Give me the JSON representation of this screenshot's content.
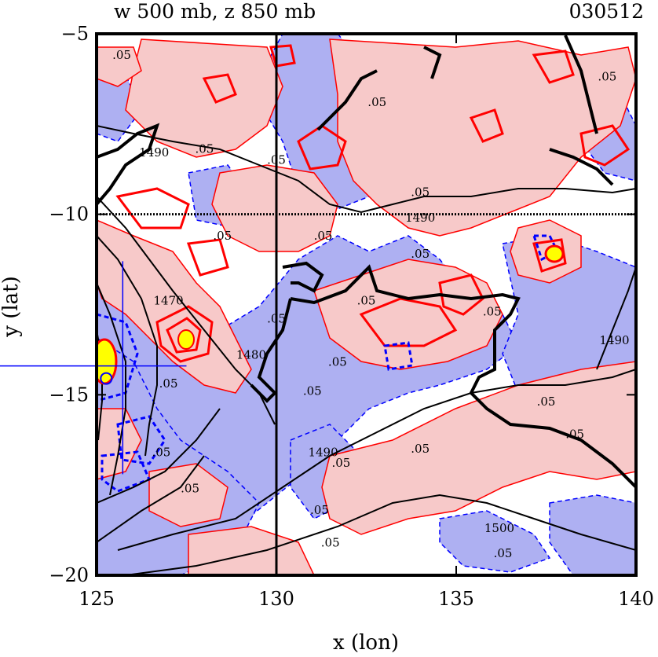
{
  "chart_data": {
    "type": "contour-map",
    "title_left": "w 500 mb, z 850 mb",
    "title_right": "030512",
    "xlabel": "x (lon)",
    "ylabel": "y (lat)",
    "xlim": [
      125,
      140
    ],
    "ylim": [
      -20,
      -5
    ],
    "xticks": [
      {
        "value": 125,
        "label": "125"
      },
      {
        "value": 130,
        "label": "130"
      },
      {
        "value": 135,
        "label": "135"
      },
      {
        "value": 140,
        "label": "140"
      }
    ],
    "yticks": [
      {
        "value": -5,
        "label": "−5"
      },
      {
        "value": -10,
        "label": "−10"
      },
      {
        "value": -15,
        "label": "−15"
      },
      {
        "value": -20,
        "label": "−20"
      }
    ],
    "reference_lines": {
      "x": 130,
      "y": -10
    },
    "marker": {
      "lon": 125.4,
      "lat": -14.2
    },
    "colors": {
      "positive_fill": "#f7c9c9",
      "negative_fill": "#aeb0f2",
      "positive_contour": "#ff0000",
      "negative_contour": "#0000ff",
      "height_contour": "#000000",
      "maximum_fill": "#ffff00",
      "marker": "#0000ff"
    },
    "height_contour_labels": [
      {
        "text": "1490",
        "lon": 126.6,
        "lat": -8.4
      },
      {
        "text": "1470",
        "lon": 127.0,
        "lat": -12.5
      },
      {
        "text": "1480",
        "lon": 129.3,
        "lat": -14.0
      },
      {
        "text": "1490",
        "lon": 131.3,
        "lat": -16.7
      },
      {
        "text": "1490",
        "lon": 134.0,
        "lat": -10.2
      },
      {
        "text": "1490",
        "lon": 139.4,
        "lat": -13.6
      },
      {
        "text": "1500",
        "lon": 136.2,
        "lat": -18.8
      }
    ],
    "w_contour_labels": [
      {
        "text": ".05",
        "lon": 125.7,
        "lat": -5.7
      },
      {
        "text": ".05",
        "lon": 128.0,
        "lat": -8.3
      },
      {
        "text": ".05",
        "lon": 130.0,
        "lat": -8.6
      },
      {
        "text": ".05",
        "lon": 132.8,
        "lat": -7.0
      },
      {
        "text": ".05",
        "lon": 134.0,
        "lat": -9.5
      },
      {
        "text": ".05",
        "lon": 139.2,
        "lat": -6.3
      },
      {
        "text": ".05",
        "lon": 131.3,
        "lat": -10.7
      },
      {
        "text": ".05",
        "lon": 128.5,
        "lat": -10.7
      },
      {
        "text": ".05",
        "lon": 134.0,
        "lat": -11.2
      },
      {
        "text": ".05",
        "lon": 130.0,
        "lat": -13.0
      },
      {
        "text": ".05",
        "lon": 132.5,
        "lat": -12.5
      },
      {
        "text": ".05",
        "lon": 131.7,
        "lat": -14.2
      },
      {
        "text": ".05",
        "lon": 131.0,
        "lat": -15.0
      },
      {
        "text": ".05",
        "lon": 131.8,
        "lat": -17.0
      },
      {
        "text": ".05",
        "lon": 131.2,
        "lat": -18.3
      },
      {
        "text": ".05",
        "lon": 131.5,
        "lat": -19.2
      },
      {
        "text": ".05",
        "lon": 134.0,
        "lat": -16.6
      },
      {
        "text": ".05",
        "lon": 136.0,
        "lat": -12.8
      },
      {
        "text": ".05",
        "lon": 137.5,
        "lat": -15.3
      },
      {
        "text": ".05",
        "lon": 138.3,
        "lat": -16.2
      },
      {
        "text": ".05",
        "lon": 136.3,
        "lat": -19.5
      },
      {
        "text": ".05",
        "lon": 127.0,
        "lat": -14.8
      },
      {
        "text": ".05",
        "lon": 126.8,
        "lat": -16.7
      },
      {
        "text": ".05",
        "lon": 127.6,
        "lat": -17.7
      }
    ]
  }
}
